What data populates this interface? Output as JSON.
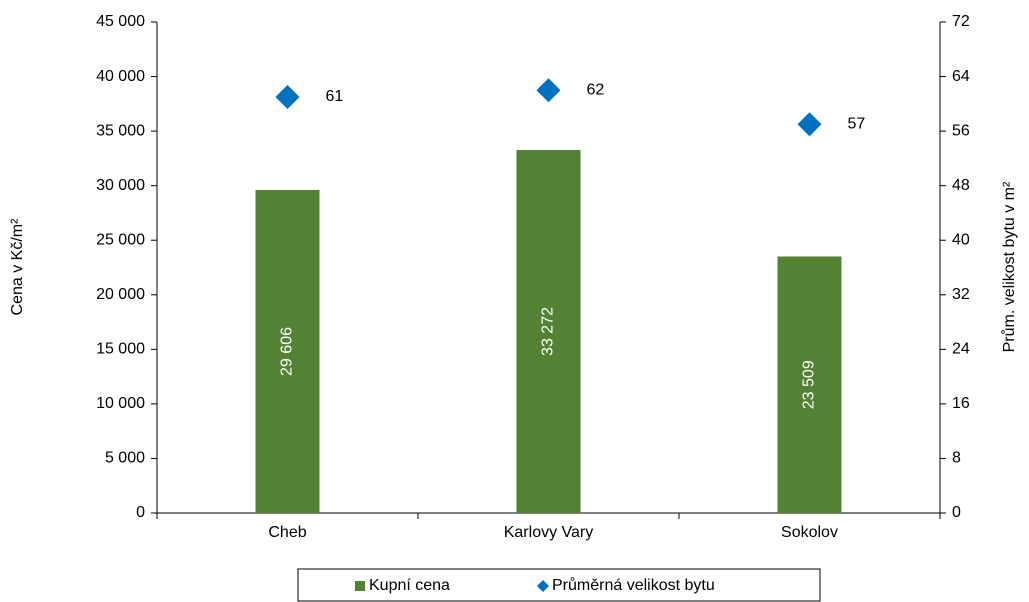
{
  "chart_data": {
    "type": "bar",
    "categories": [
      "Cheb",
      "Karlovy Vary",
      "Sokolov"
    ],
    "series": [
      {
        "name": "Kupní cena",
        "color": "#548235",
        "values": [
          29606,
          33272,
          23509
        ],
        "value_labels": [
          "29 606",
          "33 272",
          "23 509"
        ]
      },
      {
        "name": "Průměrná velikost bytu",
        "color": "#0070c0",
        "values": [
          61,
          62,
          57
        ],
        "axis": "y2",
        "type": "scatter"
      }
    ],
    "ylabel": "Cena v Kč/m²",
    "y2label": "Prům. velikost bytu v m²",
    "ylim": [
      0,
      45000
    ],
    "yticks": [
      0,
      {
        "value": 5000,
        "label": "5 000"
      },
      {
        "value": 10000,
        "label": "10 000"
      },
      {
        "value": 15000,
        "label": "15 000"
      },
      {
        "value": 20000,
        "label": "20 000"
      },
      {
        "value": 25000,
        "label": "25 000"
      },
      {
        "value": 30000,
        "label": "30 000"
      },
      {
        "value": 35000,
        "label": "35 000"
      },
      {
        "value": 40000,
        "label": "40 000"
      },
      {
        "value": 45000,
        "label": "45 000"
      }
    ],
    "y2lim": [
      0,
      72
    ],
    "y2ticks": [
      0,
      8,
      16,
      24,
      32,
      40,
      48,
      56,
      64,
      72
    ],
    "legend": "bottom"
  }
}
